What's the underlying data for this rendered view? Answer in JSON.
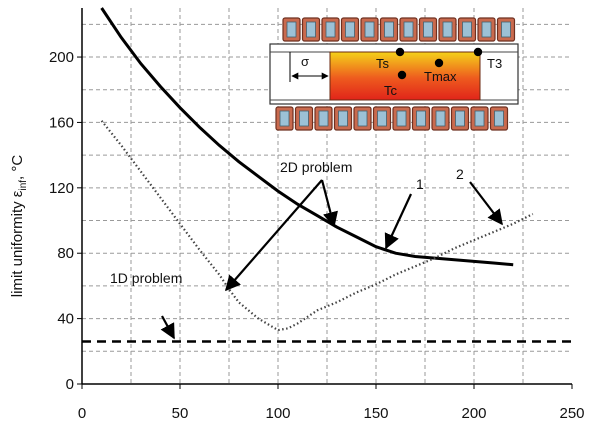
{
  "chart_data": {
    "type": "line",
    "ylabel_main": "limit uniformity ε",
    "ylabel_sub": "inf",
    "ylabel_unit": ", °C",
    "xlim": [
      0,
      250
    ],
    "ylim": [
      0,
      230
    ],
    "x_ticks": [
      0,
      50,
      100,
      150,
      200,
      250
    ],
    "y_ticks": [
      0,
      40,
      80,
      120,
      160,
      200
    ],
    "grid": true,
    "series": [
      {
        "name": "1",
        "style": "solid",
        "color": "#000000",
        "x": [
          10,
          20,
          30,
          40,
          50,
          60,
          70,
          80,
          90,
          100,
          110,
          120,
          130,
          140,
          150,
          160,
          170,
          180,
          190,
          200,
          210,
          220
        ],
        "y": [
          230,
          212,
          196,
          182,
          169,
          157,
          146,
          136,
          127,
          118,
          110,
          103,
          96,
          90,
          84,
          80,
          78,
          77,
          76,
          75,
          74,
          73
        ]
      },
      {
        "name": "2",
        "style": "dotted",
        "color": "#444444",
        "x": [
          10,
          20,
          30,
          40,
          50,
          60,
          70,
          75,
          80,
          90,
          100,
          105,
          110,
          120,
          130,
          140,
          150,
          160,
          170,
          180,
          190,
          200,
          210,
          220,
          230
        ],
        "y": [
          161,
          146,
          130,
          114,
          98,
          82,
          67,
          58,
          50,
          40,
          33,
          34,
          37,
          45,
          50,
          56,
          61,
          67,
          72,
          77,
          83,
          88,
          93,
          98,
          104
        ]
      },
      {
        "name": "1D",
        "style": "dashed",
        "color": "#000000",
        "x": [
          0,
          250
        ],
        "y": [
          26,
          26
        ]
      }
    ],
    "annotations": {
      "label_2d": "2D problem",
      "label_1d": "1D problem",
      "label_curve1": "1",
      "label_curve2": "2"
    },
    "inset": {
      "sigma": "σ",
      "ts": "Ts",
      "tmax": "Tmax",
      "tc": "Tc",
      "t3": "T3"
    }
  }
}
